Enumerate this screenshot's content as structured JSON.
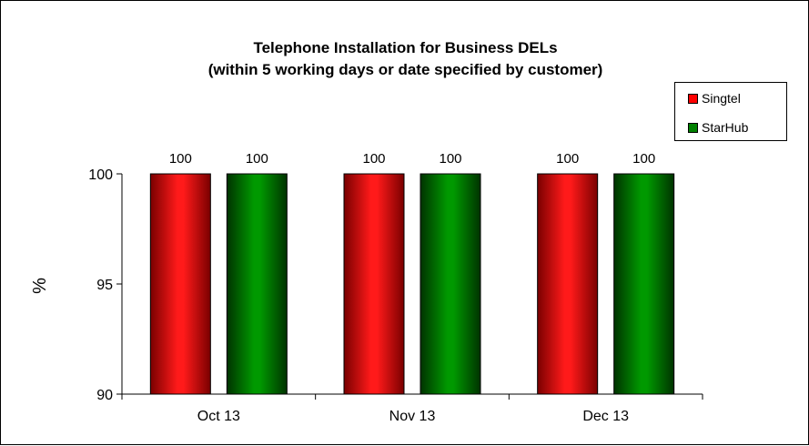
{
  "chart_data": {
    "type": "bar",
    "title_lines": [
      "Telephone Installation for Business DELs",
      "(within 5 working days or date specified by customer)"
    ],
    "ylabel": "%",
    "xlabel": "",
    "ylim": [
      90,
      100
    ],
    "yticks": [
      "90",
      "95",
      "100"
    ],
    "categories": [
      "Oct 13",
      "Nov 13",
      "Dec 13"
    ],
    "series": [
      {
        "name": "Singtel",
        "values": [
          100,
          100,
          100
        ],
        "color": "#ff0000",
        "labels": [
          "100",
          "100",
          "100"
        ]
      },
      {
        "name": "StarHub",
        "values": [
          100,
          100,
          100
        ],
        "color": "#008000",
        "labels": [
          "100",
          "100",
          "100"
        ]
      }
    ],
    "legend_position": "top-right",
    "grid": false
  }
}
